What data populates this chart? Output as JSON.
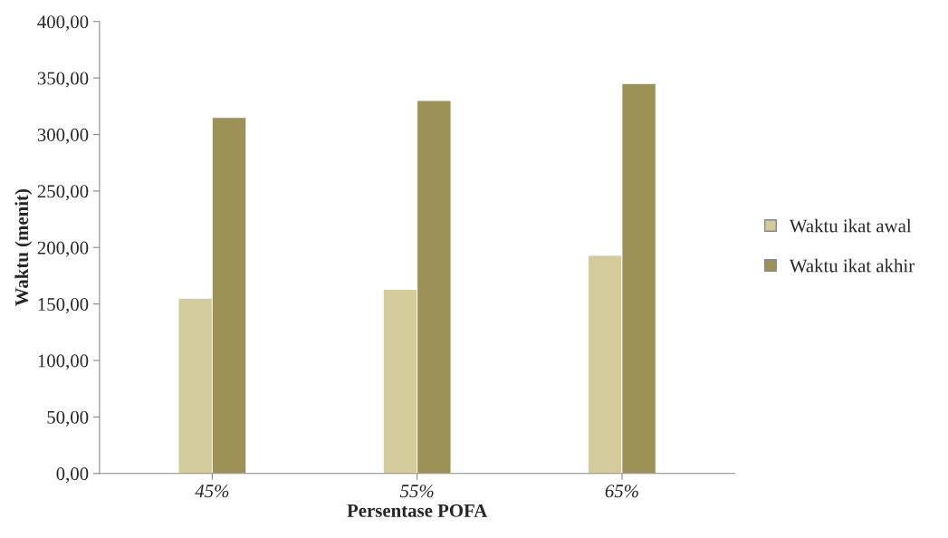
{
  "chart_data": {
    "type": "bar",
    "xlabel": "Persentase POFA",
    "ylabel": "Waktu (menit)",
    "categories": [
      "45%",
      "55%",
      "65%"
    ],
    "series": [
      {
        "name": "Waktu ikat awal",
        "color": "#d3cb9c",
        "values": [
          155,
          163,
          193
        ]
      },
      {
        "name": "Waktu ikat akhir",
        "color": "#9c9258",
        "values": [
          315,
          330,
          345
        ]
      }
    ],
    "ylim": [
      0,
      400
    ],
    "yticks": [
      {
        "value": 0,
        "label": "0,00"
      },
      {
        "value": 50,
        "label": "50,00"
      },
      {
        "value": 100,
        "label": "100,00"
      },
      {
        "value": 150,
        "label": "150,00"
      },
      {
        "value": 200,
        "label": "200,00"
      },
      {
        "value": 250,
        "label": "250,00"
      },
      {
        "value": 300,
        "label": "300,00"
      },
      {
        "value": 350,
        "label": "350,00"
      },
      {
        "value": 400,
        "label": "400,00"
      }
    ],
    "grid": false,
    "legend": "right"
  }
}
